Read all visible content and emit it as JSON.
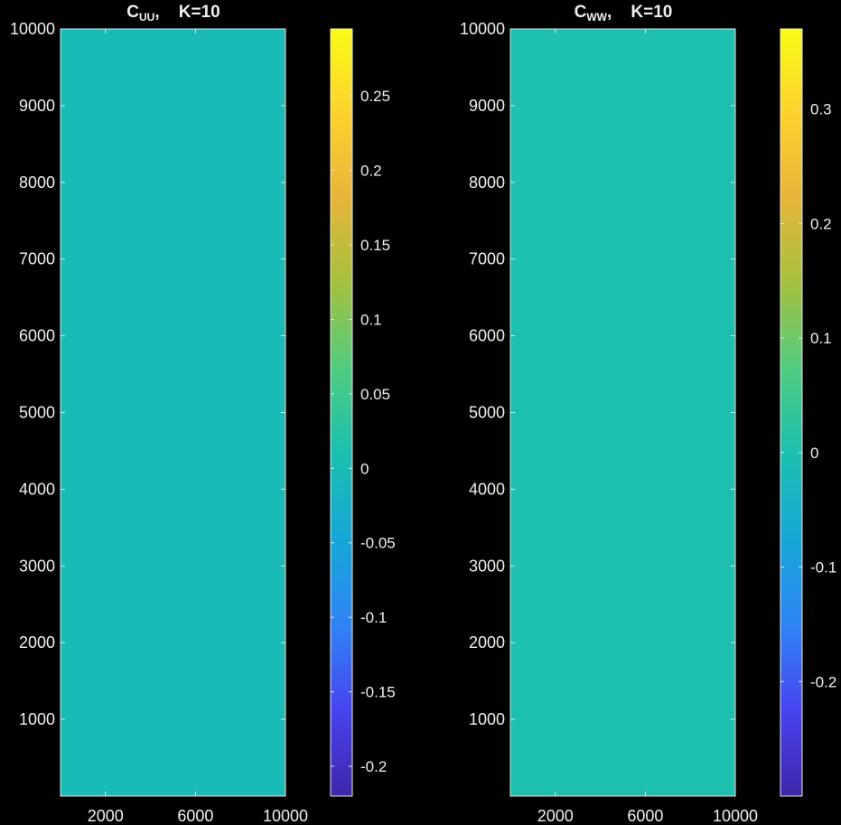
{
  "chart_data": [
    {
      "type": "heatmap",
      "title": "C",
      "title_subscript": "UU",
      "title_suffix": ",    K=10",
      "xlim": [
        0,
        10000
      ],
      "ylim": [
        0,
        10000
      ],
      "xticks": [
        2000,
        6000,
        10000
      ],
      "yticks": [
        1000,
        2000,
        3000,
        4000,
        5000,
        6000,
        7000,
        8000,
        9000,
        10000
      ],
      "fill_value": 0,
      "colorbar": {
        "range": [
          -0.22,
          0.295
        ],
        "ticks": [
          -0.2,
          -0.15,
          -0.1,
          -0.05,
          0,
          0.05,
          0.1,
          0.15,
          0.2,
          0.25
        ]
      }
    },
    {
      "type": "heatmap",
      "title": "C",
      "title_subscript": "WW",
      "title_suffix": ",    K=10",
      "xlim": [
        0,
        10000
      ],
      "ylim": [
        0,
        10000
      ],
      "xticks": [
        2000,
        6000,
        10000
      ],
      "yticks": [
        1000,
        2000,
        3000,
        4000,
        5000,
        6000,
        7000,
        8000,
        9000,
        10000
      ],
      "fill_value": 0,
      "colorbar": {
        "range": [
          -0.3,
          0.37
        ],
        "ticks": [
          -0.2,
          -0.1,
          0,
          0.1,
          0.2,
          0.3
        ]
      }
    }
  ],
  "colormap": [
    "#3e26a8",
    "#4743f0",
    "#2f84f5",
    "#16a7d8",
    "#1bbfb0",
    "#4fcc81",
    "#a4c13e",
    "#e7b53a",
    "#fcd22d",
    "#f9fb15"
  ],
  "axis_color": "#e6e6e6",
  "background": "#000000"
}
